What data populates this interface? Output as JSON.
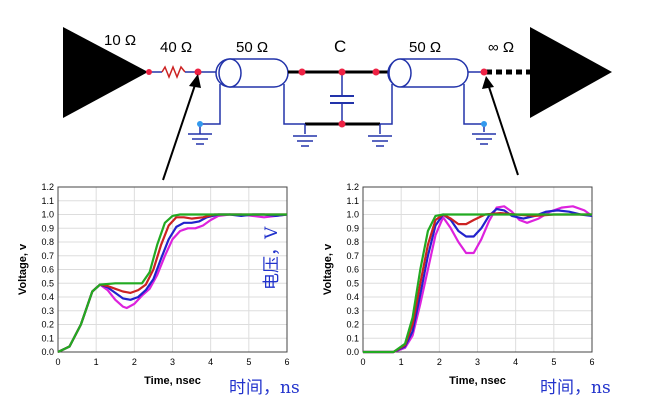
{
  "circuit": {
    "labels": {
      "source_r": "10 Ω",
      "series_r": "40 Ω",
      "line1": "50 Ω",
      "cap": "C",
      "line2": "50 Ω",
      "load": "∞ Ω"
    }
  },
  "annotations": {
    "voltage_cn": "电压，V",
    "time_cn_left": "时间，ns",
    "time_cn_right": "时间，ns"
  },
  "chart_data": [
    {
      "type": "line",
      "xlabel": "Time, nsec",
      "ylabel": "Voltage, v",
      "xlim": [
        0,
        6
      ],
      "ylim": [
        0,
        1.2
      ],
      "xticks": [
        0,
        1,
        2,
        3,
        4,
        5,
        6
      ],
      "yticks": [
        0.0,
        0.1,
        0.2,
        0.3,
        0.4,
        0.5,
        0.6,
        0.7,
        0.8,
        0.9,
        1.0,
        1.1,
        1.2
      ],
      "grid": true,
      "series": [
        {
          "color": "#dd22dd",
          "x": [
            0,
            0.3,
            0.6,
            0.9,
            1.1,
            1.3,
            1.5,
            1.7,
            1.8,
            2.0,
            2.2,
            2.4,
            2.6,
            2.8,
            3.0,
            3.2,
            3.4,
            3.6,
            3.8,
            4.0,
            4.2,
            4.5,
            4.8,
            5.1,
            5.4,
            5.7,
            6.0
          ],
          "y": [
            0,
            0.04,
            0.2,
            0.44,
            0.49,
            0.45,
            0.38,
            0.33,
            0.32,
            0.35,
            0.41,
            0.46,
            0.56,
            0.7,
            0.82,
            0.88,
            0.9,
            0.9,
            0.92,
            0.96,
            0.99,
            1.0,
            1.0,
            0.99,
            0.98,
            0.99,
            1.0
          ]
        },
        {
          "color": "#2222cc",
          "x": [
            0,
            0.3,
            0.6,
            0.9,
            1.1,
            1.3,
            1.5,
            1.7,
            1.9,
            2.1,
            2.3,
            2.5,
            2.7,
            2.9,
            3.1,
            3.3,
            3.5,
            3.7,
            3.9,
            4.2,
            4.5,
            4.8,
            5.1,
            5.4,
            5.7,
            6.0
          ],
          "y": [
            0,
            0.04,
            0.2,
            0.44,
            0.49,
            0.47,
            0.43,
            0.39,
            0.38,
            0.4,
            0.45,
            0.53,
            0.68,
            0.82,
            0.91,
            0.94,
            0.94,
            0.95,
            0.98,
            1.0,
            1.0,
            0.99,
            1.0,
            1.0,
            0.99,
            1.0
          ]
        },
        {
          "color": "#cc2222",
          "x": [
            0,
            0.3,
            0.6,
            0.9,
            1.1,
            1.3,
            1.5,
            1.7,
            1.9,
            2.1,
            2.3,
            2.5,
            2.7,
            2.9,
            3.1,
            3.3,
            3.5,
            3.8,
            4.1,
            4.5,
            5.0,
            5.5,
            6.0
          ],
          "y": [
            0,
            0.04,
            0.2,
            0.44,
            0.49,
            0.48,
            0.46,
            0.44,
            0.43,
            0.45,
            0.49,
            0.6,
            0.78,
            0.92,
            0.98,
            0.98,
            0.97,
            0.98,
            1.0,
            1.0,
            1.0,
            1.0,
            1.0
          ]
        },
        {
          "color": "#22aa22",
          "x": [
            0,
            0.3,
            0.6,
            0.9,
            1.1,
            1.5,
            1.9,
            2.2,
            2.4,
            2.6,
            2.8,
            3.0,
            3.2,
            3.5,
            4.0,
            4.5,
            5.0,
            5.5,
            6.0
          ],
          "y": [
            0,
            0.04,
            0.2,
            0.44,
            0.49,
            0.5,
            0.5,
            0.5,
            0.58,
            0.78,
            0.94,
            0.99,
            1.0,
            1.0,
            1.0,
            1.0,
            1.0,
            1.0,
            1.0
          ]
        }
      ]
    },
    {
      "type": "line",
      "xlabel": "Time, nsec",
      "ylabel": "Voltage, v",
      "xlim": [
        0,
        6
      ],
      "ylim": [
        0,
        1.2
      ],
      "xticks": [
        0,
        1,
        2,
        3,
        4,
        5,
        6
      ],
      "yticks": [
        0.0,
        0.1,
        0.2,
        0.3,
        0.4,
        0.5,
        0.6,
        0.7,
        0.8,
        0.9,
        1.0,
        1.1,
        1.2
      ],
      "grid": true,
      "series": [
        {
          "color": "#dd22dd",
          "x": [
            0,
            0.8,
            1.1,
            1.3,
            1.5,
            1.7,
            1.9,
            2.1,
            2.3,
            2.5,
            2.7,
            2.9,
            3.1,
            3.3,
            3.5,
            3.7,
            3.9,
            4.1,
            4.3,
            4.6,
            4.9,
            5.2,
            5.5,
            5.8,
            6.0
          ],
          "y": [
            0,
            0.0,
            0.03,
            0.12,
            0.35,
            0.6,
            0.85,
            0.98,
            0.9,
            0.8,
            0.72,
            0.72,
            0.82,
            0.95,
            1.05,
            1.06,
            1.02,
            0.96,
            0.94,
            0.97,
            1.02,
            1.05,
            1.06,
            1.03,
            0.99
          ]
        },
        {
          "color": "#2222cc",
          "x": [
            0,
            0.8,
            1.1,
            1.3,
            1.5,
            1.7,
            1.9,
            2.1,
            2.3,
            2.5,
            2.7,
            2.9,
            3.1,
            3.3,
            3.5,
            3.7,
            3.9,
            4.2,
            4.5,
            4.8,
            5.1,
            5.4,
            5.7,
            6.0
          ],
          "y": [
            0,
            0.0,
            0.04,
            0.15,
            0.42,
            0.7,
            0.92,
            1.0,
            0.96,
            0.88,
            0.84,
            0.84,
            0.9,
            0.99,
            1.04,
            1.03,
            0.99,
            0.97,
            0.99,
            1.02,
            1.03,
            1.02,
            1.0,
            0.99
          ]
        },
        {
          "color": "#cc2222",
          "x": [
            0,
            0.8,
            1.1,
            1.3,
            1.5,
            1.7,
            1.9,
            2.1,
            2.3,
            2.5,
            2.7,
            2.9,
            3.2,
            3.6,
            4.0,
            4.5,
            5.0,
            5.5,
            6.0
          ],
          "y": [
            0,
            0.0,
            0.05,
            0.2,
            0.5,
            0.78,
            0.96,
            1.0,
            0.97,
            0.93,
            0.93,
            0.96,
            1.0,
            1.01,
            1.0,
            0.99,
            1.0,
            1.0,
            1.0
          ]
        },
        {
          "color": "#22aa22",
          "x": [
            0,
            0.8,
            1.1,
            1.3,
            1.5,
            1.7,
            1.9,
            2.1,
            2.3,
            2.6,
            3.0,
            3.5,
            4.0,
            4.5,
            5.0,
            5.5,
            6.0
          ],
          "y": [
            0,
            0.0,
            0.06,
            0.25,
            0.6,
            0.88,
            0.99,
            1.0,
            1.0,
            1.0,
            1.0,
            1.0,
            1.0,
            1.0,
            1.0,
            1.0,
            1.0
          ]
        }
      ]
    }
  ]
}
